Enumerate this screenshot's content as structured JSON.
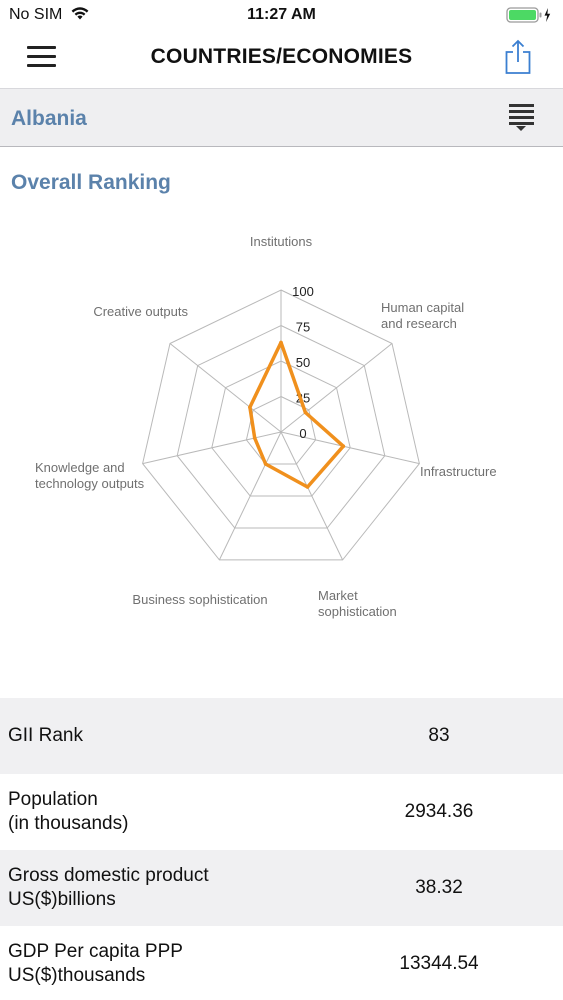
{
  "status": {
    "carrier": "No SIM",
    "time": "11:27 AM"
  },
  "nav": {
    "title": "COUNTRIES/ECONOMIES"
  },
  "country": {
    "name": "Albania"
  },
  "overall": {
    "title": "Overall Ranking",
    "axes": [
      {
        "label": "Institutions",
        "lines": [
          "Institutions"
        ],
        "value": 63
      },
      {
        "label": "Human capital and research",
        "lines": [
          "Human capital",
          "and research"
        ],
        "value": 22
      },
      {
        "label": "Infrastructure",
        "lines": [
          "Infrastructure"
        ],
        "value": 45
      },
      {
        "label": "Market sophistication",
        "lines": [
          "Market",
          "sophistication"
        ],
        "value": 43
      },
      {
        "label": "Business sophistication",
        "lines": [
          "Business sophistication"
        ],
        "value": 25
      },
      {
        "label": "Knowledge and technology outputs",
        "lines": [
          "Knowledge and",
          "technology outputs"
        ],
        "value": 19
      },
      {
        "label": "Creative outputs",
        "lines": [
          "Creative outputs"
        ],
        "value": 28
      }
    ],
    "scale_labels": [
      "0",
      "25",
      "50",
      "75",
      "100"
    ],
    "line_color": "#f0901d",
    "grid_color": "#b9b9b9"
  },
  "stats": [
    {
      "label_line1": "GII Rank",
      "label_line2": "",
      "value": "83"
    },
    {
      "label_line1": "Population",
      "label_line2": "(in thousands)",
      "value": "2934.36"
    },
    {
      "label_line1": "Gross domestic product",
      "label_line2": "US($)billions",
      "value": "38.32"
    },
    {
      "label_line1": "GDP Per capita PPP",
      "label_line2": "US($)thousands",
      "value": "13344.54"
    }
  ]
}
